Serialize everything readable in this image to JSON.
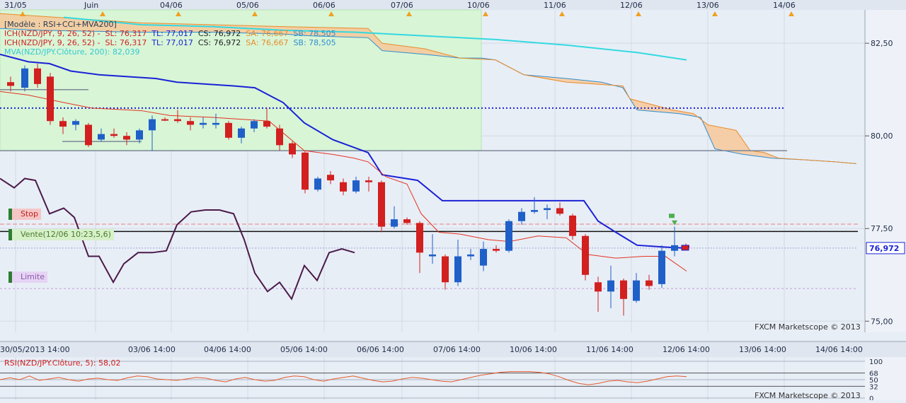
{
  "chart_data": {
    "type": "candlestick",
    "instrument": "NZD/JPY",
    "top_date_labels": [
      "31/05",
      "Juin",
      "04/06",
      "05/06",
      "06/06",
      "07/06",
      "10/06",
      "11/06",
      "12/06",
      "13/06",
      "14/06"
    ],
    "bottom_time_labels": [
      "30/05/2013 14:00",
      "03/06 14:00",
      "04/06 14:00",
      "05/06 14:00",
      "06/06 14:00",
      "07/06 14:00",
      "10/06 14:00",
      "11/06 14:00",
      "12/06 14:00",
      "13/06 14:00",
      "14/06 14:00"
    ],
    "y_ticks": [
      "82,50",
      "80,00",
      "77,50",
      "75,00"
    ],
    "ylim": [
      74.7,
      83.4
    ],
    "current_price_label": "76,972",
    "current_price": 76.972,
    "legend": {
      "model": "[Modèle : RSI+CCI+MVA200]",
      "ich_prefix": "ICH(NZD/JPY, 9, 26, 52) -",
      "sl": "SL: 76,317",
      "tl": "TL: 77,017",
      "cs": "CS: 76,972",
      "sa": "SA: 76,667",
      "sb": "SB: 78,505",
      "mva": "MVA(NZD/JPY.Clôture, 200): 82,039"
    },
    "orders": {
      "stop": "Stop",
      "sell": "Vente(12/06 10:23,5,6)",
      "limit": "Limite"
    },
    "order_levels": {
      "stop": 77.62,
      "sell": 77.42,
      "limit": 75.88
    },
    "watermark": "FXCM Marketscope © 2013",
    "rsi": {
      "label": "RSI(NZD/JPY.Clôture, 5): 58,02",
      "ticks": [
        "100",
        "68",
        "50",
        "32",
        "0"
      ],
      "values": [
        50,
        55,
        50,
        60,
        48,
        52,
        56,
        50,
        46,
        52,
        54,
        50,
        48,
        55,
        60,
        58,
        52,
        50,
        48,
        52,
        56,
        54,
        48,
        44,
        52,
        56,
        50,
        46,
        48,
        56,
        60,
        58,
        50,
        46,
        52,
        56,
        60,
        54,
        48,
        44,
        46,
        52,
        56,
        54,
        50,
        46,
        44,
        50,
        56,
        62,
        66,
        70,
        72,
        72,
        72,
        70,
        66,
        58,
        48,
        40,
        36,
        40,
        46,
        48,
        44,
        42,
        46,
        52,
        58,
        60,
        58
      ]
    },
    "candles": [
      {
        "x": 15,
        "o": 81.45,
        "h": 81.6,
        "l": 81.2,
        "c": 81.35
      },
      {
        "x": 35,
        "o": 81.3,
        "h": 81.9,
        "l": 81.2,
        "c": 81.82
      },
      {
        "x": 53,
        "o": 81.82,
        "h": 81.95,
        "l": 81.3,
        "c": 81.4
      },
      {
        "x": 71,
        "o": 81.6,
        "h": 81.7,
        "l": 80.3,
        "c": 80.4
      },
      {
        "x": 89,
        "o": 80.4,
        "h": 80.5,
        "l": 80.05,
        "c": 80.25
      },
      {
        "x": 107,
        "o": 80.3,
        "h": 80.45,
        "l": 80.15,
        "c": 80.4
      },
      {
        "x": 125,
        "o": 80.3,
        "h": 80.35,
        "l": 79.7,
        "c": 79.75
      },
      {
        "x": 143,
        "o": 79.9,
        "h": 80.2,
        "l": 79.85,
        "c": 80.05
      },
      {
        "x": 161,
        "o": 80.05,
        "h": 80.2,
        "l": 79.95,
        "c": 80.0
      },
      {
        "x": 179,
        "o": 80.0,
        "h": 80.1,
        "l": 79.75,
        "c": 79.9
      },
      {
        "x": 197,
        "o": 79.9,
        "h": 80.2,
        "l": 79.8,
        "c": 80.15
      },
      {
        "x": 215,
        "o": 80.15,
        "h": 80.55,
        "l": 79.6,
        "c": 80.45
      },
      {
        "x": 233,
        "o": 80.45,
        "h": 80.5,
        "l": 80.4,
        "c": 80.43
      },
      {
        "x": 251,
        "o": 80.45,
        "h": 80.7,
        "l": 80.35,
        "c": 80.4
      },
      {
        "x": 269,
        "o": 80.4,
        "h": 80.5,
        "l": 80.15,
        "c": 80.3
      },
      {
        "x": 287,
        "o": 80.3,
        "h": 80.5,
        "l": 80.2,
        "c": 80.35
      },
      {
        "x": 305,
        "o": 80.3,
        "h": 80.6,
        "l": 80.2,
        "c": 80.35
      },
      {
        "x": 323,
        "o": 80.35,
        "h": 80.4,
        "l": 79.9,
        "c": 79.95
      },
      {
        "x": 341,
        "o": 79.95,
        "h": 80.25,
        "l": 79.8,
        "c": 80.2
      },
      {
        "x": 359,
        "o": 80.2,
        "h": 80.45,
        "l": 80.1,
        "c": 80.4
      },
      {
        "x": 377,
        "o": 80.4,
        "h": 80.75,
        "l": 80.2,
        "c": 80.25
      },
      {
        "x": 395,
        "o": 80.2,
        "h": 80.3,
        "l": 79.6,
        "c": 79.75
      },
      {
        "x": 413,
        "o": 79.8,
        "h": 79.85,
        "l": 79.4,
        "c": 79.5
      },
      {
        "x": 431,
        "o": 79.55,
        "h": 79.6,
        "l": 78.45,
        "c": 78.55
      },
      {
        "x": 449,
        "o": 78.55,
        "h": 78.9,
        "l": 78.5,
        "c": 78.85
      },
      {
        "x": 467,
        "o": 78.95,
        "h": 79.05,
        "l": 78.7,
        "c": 78.8
      },
      {
        "x": 485,
        "o": 78.75,
        "h": 78.85,
        "l": 78.4,
        "c": 78.5
      },
      {
        "x": 503,
        "o": 78.5,
        "h": 78.9,
        "l": 78.45,
        "c": 78.8
      },
      {
        "x": 521,
        "o": 78.8,
        "h": 78.9,
        "l": 78.5,
        "c": 78.75
      },
      {
        "x": 539,
        "o": 78.75,
        "h": 78.8,
        "l": 77.4,
        "c": 77.55
      },
      {
        "x": 557,
        "o": 77.55,
        "h": 78.1,
        "l": 77.5,
        "c": 77.75
      },
      {
        "x": 575,
        "o": 77.75,
        "h": 77.8,
        "l": 77.6,
        "c": 77.65
      },
      {
        "x": 593,
        "o": 77.65,
        "h": 77.7,
        "l": 76.3,
        "c": 76.85
      },
      {
        "x": 611,
        "o": 76.75,
        "h": 77.35,
        "l": 76.55,
        "c": 76.8
      },
      {
        "x": 629,
        "o": 76.75,
        "h": 76.8,
        "l": 75.85,
        "c": 76.05
      },
      {
        "x": 647,
        "o": 76.05,
        "h": 77.2,
        "l": 75.95,
        "c": 76.75
      },
      {
        "x": 665,
        "o": 76.75,
        "h": 76.95,
        "l": 76.65,
        "c": 76.8
      },
      {
        "x": 683,
        "o": 76.5,
        "h": 77.15,
        "l": 76.35,
        "c": 76.95
      },
      {
        "x": 701,
        "o": 76.95,
        "h": 77.05,
        "l": 76.85,
        "c": 76.9
      },
      {
        "x": 719,
        "o": 76.9,
        "h": 77.75,
        "l": 76.85,
        "c": 77.7
      },
      {
        "x": 737,
        "o": 77.7,
        "h": 78.05,
        "l": 77.6,
        "c": 77.95
      },
      {
        "x": 755,
        "o": 77.95,
        "h": 78.35,
        "l": 77.9,
        "c": 78.0
      },
      {
        "x": 773,
        "o": 78.0,
        "h": 78.15,
        "l": 77.75,
        "c": 78.05
      },
      {
        "x": 791,
        "o": 78.05,
        "h": 78.2,
        "l": 77.85,
        "c": 77.9
      },
      {
        "x": 809,
        "o": 77.85,
        "h": 77.9,
        "l": 77.2,
        "c": 77.3
      },
      {
        "x": 827,
        "o": 77.3,
        "h": 77.35,
        "l": 76.1,
        "c": 76.25
      },
      {
        "x": 845,
        "o": 76.05,
        "h": 76.2,
        "l": 75.25,
        "c": 75.8
      },
      {
        "x": 863,
        "o": 75.8,
        "h": 76.5,
        "l": 75.35,
        "c": 76.1
      },
      {
        "x": 881,
        "o": 76.1,
        "h": 76.15,
        "l": 75.15,
        "c": 75.6
      },
      {
        "x": 899,
        "o": 75.55,
        "h": 76.3,
        "l": 75.5,
        "c": 76.1
      },
      {
        "x": 917,
        "o": 76.1,
        "h": 76.25,
        "l": 75.85,
        "c": 75.95
      },
      {
        "x": 935,
        "o": 76.0,
        "h": 77.05,
        "l": 75.9,
        "c": 76.9
      },
      {
        "x": 953,
        "o": 76.9,
        "h": 77.55,
        "l": 76.75,
        "c": 77.05
      },
      {
        "x": 969,
        "o": 77.05,
        "h": 77.1,
        "l": 76.95,
        "c": 76.97
      }
    ],
    "tenkan": [
      [
        0,
        81.2
      ],
      [
        40,
        81.1
      ],
      [
        90,
        80.9
      ],
      [
        130,
        80.75
      ],
      [
        180,
        80.7
      ],
      [
        200,
        80.68
      ],
      [
        240,
        80.55
      ],
      [
        300,
        80.5
      ],
      [
        380,
        80.4
      ],
      [
        430,
        79.6
      ],
      [
        470,
        79.5
      ],
      [
        500,
        79.4
      ],
      [
        520,
        79.3
      ],
      [
        545,
        78.9
      ],
      [
        575,
        78.7
      ],
      [
        595,
        77.9
      ],
      [
        620,
        77.4
      ],
      [
        650,
        77.35
      ],
      [
        690,
        77.2
      ],
      [
        720,
        77.15
      ],
      [
        760,
        77.3
      ],
      [
        800,
        77.25
      ],
      [
        830,
        76.8
      ],
      [
        870,
        76.7
      ],
      [
        910,
        76.75
      ],
      [
        940,
        76.75
      ],
      [
        970,
        76.35
      ]
    ],
    "kijun": [
      [
        0,
        82.2
      ],
      [
        40,
        82.0
      ],
      [
        70,
        81.95
      ],
      [
        100,
        81.75
      ],
      [
        140,
        81.65
      ],
      [
        180,
        81.6
      ],
      [
        220,
        81.55
      ],
      [
        250,
        81.45
      ],
      [
        290,
        81.4
      ],
      [
        330,
        81.35
      ],
      [
        360,
        81.3
      ],
      [
        400,
        80.9
      ],
      [
        430,
        80.35
      ],
      [
        470,
        79.9
      ],
      [
        520,
        79.55
      ],
      [
        540,
        78.95
      ],
      [
        590,
        78.8
      ],
      [
        625,
        78.25
      ],
      [
        800,
        78.25
      ],
      [
        825,
        78.25
      ],
      [
        845,
        77.7
      ],
      [
        870,
        77.4
      ],
      [
        900,
        77.05
      ],
      [
        940,
        77.0
      ],
      [
        970,
        76.97
      ]
    ],
    "senkou_a": [
      [
        0,
        82.9
      ],
      [
        60,
        82.85
      ],
      [
        200,
        82.8
      ],
      [
        300,
        82.8
      ],
      [
        400,
        82.75
      ],
      [
        440,
        82.7
      ],
      [
        520,
        82.65
      ],
      [
        540,
        82.3
      ],
      [
        600,
        82.2
      ],
      [
        650,
        82.1
      ],
      [
        680,
        82.1
      ],
      [
        700,
        82.05
      ],
      [
        740,
        81.65
      ],
      [
        800,
        81.55
      ],
      [
        850,
        81.45
      ],
      [
        880,
        81.3
      ],
      [
        900,
        80.7
      ],
      [
        960,
        80.6
      ],
      [
        990,
        80.5
      ],
      [
        1010,
        79.65
      ],
      [
        1050,
        79.5
      ],
      [
        1090,
        79.4
      ],
      [
        1140,
        79.35
      ],
      [
        1180,
        79.3
      ],
      [
        1210,
        79.25
      ]
    ],
    "senkou_b": [
      [
        0,
        83.3
      ],
      [
        200,
        83.05
      ],
      [
        400,
        82.95
      ],
      [
        520,
        82.9
      ],
      [
        540,
        82.5
      ],
      [
        600,
        82.35
      ],
      [
        650,
        82.1
      ],
      [
        700,
        82.05
      ],
      [
        740,
        81.65
      ],
      [
        800,
        81.45
      ],
      [
        880,
        81.35
      ],
      [
        890,
        81.0
      ],
      [
        950,
        80.7
      ],
      [
        980,
        80.6
      ],
      [
        1000,
        80.3
      ],
      [
        1040,
        80.15
      ],
      [
        1060,
        79.6
      ],
      [
        1080,
        79.55
      ],
      [
        1100,
        79.4
      ],
      [
        1140,
        79.35
      ],
      [
        1180,
        79.3
      ],
      [
        1210,
        79.25
      ]
    ],
    "mva": [
      [
        90,
        83.2
      ],
      [
        200,
        83.0
      ],
      [
        300,
        82.95
      ],
      [
        400,
        82.85
      ],
      [
        500,
        82.8
      ],
      [
        600,
        82.7
      ],
      [
        700,
        82.6
      ],
      [
        800,
        82.45
      ],
      [
        900,
        82.25
      ],
      [
        970,
        82.05
      ]
    ],
    "rsi_overlay": [
      [
        0,
        78.85
      ],
      [
        20,
        78.6
      ],
      [
        35,
        78.85
      ],
      [
        50,
        78.8
      ],
      [
        70,
        77.9
      ],
      [
        90,
        78.05
      ],
      [
        105,
        77.8
      ],
      [
        125,
        76.75
      ],
      [
        140,
        76.75
      ],
      [
        160,
        76.05
      ],
      [
        175,
        76.55
      ],
      [
        195,
        76.85
      ],
      [
        215,
        76.85
      ],
      [
        235,
        76.9
      ],
      [
        250,
        77.6
      ],
      [
        270,
        77.95
      ],
      [
        290,
        78.0
      ],
      [
        310,
        78.0
      ],
      [
        330,
        77.9
      ],
      [
        345,
        77.2
      ],
      [
        360,
        76.3
      ],
      [
        378,
        75.8
      ],
      [
        395,
        76.05
      ],
      [
        412,
        75.6
      ],
      [
        430,
        76.5
      ],
      [
        448,
        76.1
      ],
      [
        465,
        76.85
      ],
      [
        483,
        76.95
      ],
      [
        501,
        76.85
      ]
    ],
    "hlines": {
      "dotted_blue": 80.75,
      "grey_left": 81.25,
      "grey_mid": 79.85,
      "grey_right": 79.6,
      "black_sell": 77.42
    },
    "green_zone": {
      "x0": 0,
      "x1": 680,
      "y0": 83.4,
      "y1": 79.6
    },
    "colors": {
      "bg": "#e8eef6",
      "grid": "#d2dae4",
      "bull": "#1f5fc8",
      "bear": "#d21f1f",
      "tenkan": "#e53323",
      "kijun": "#1a22d6",
      "mva": "#33d9e0",
      "cloud": "#f7c89a",
      "green": "#d8f5d6",
      "rsi": "#4a1a4a"
    }
  }
}
